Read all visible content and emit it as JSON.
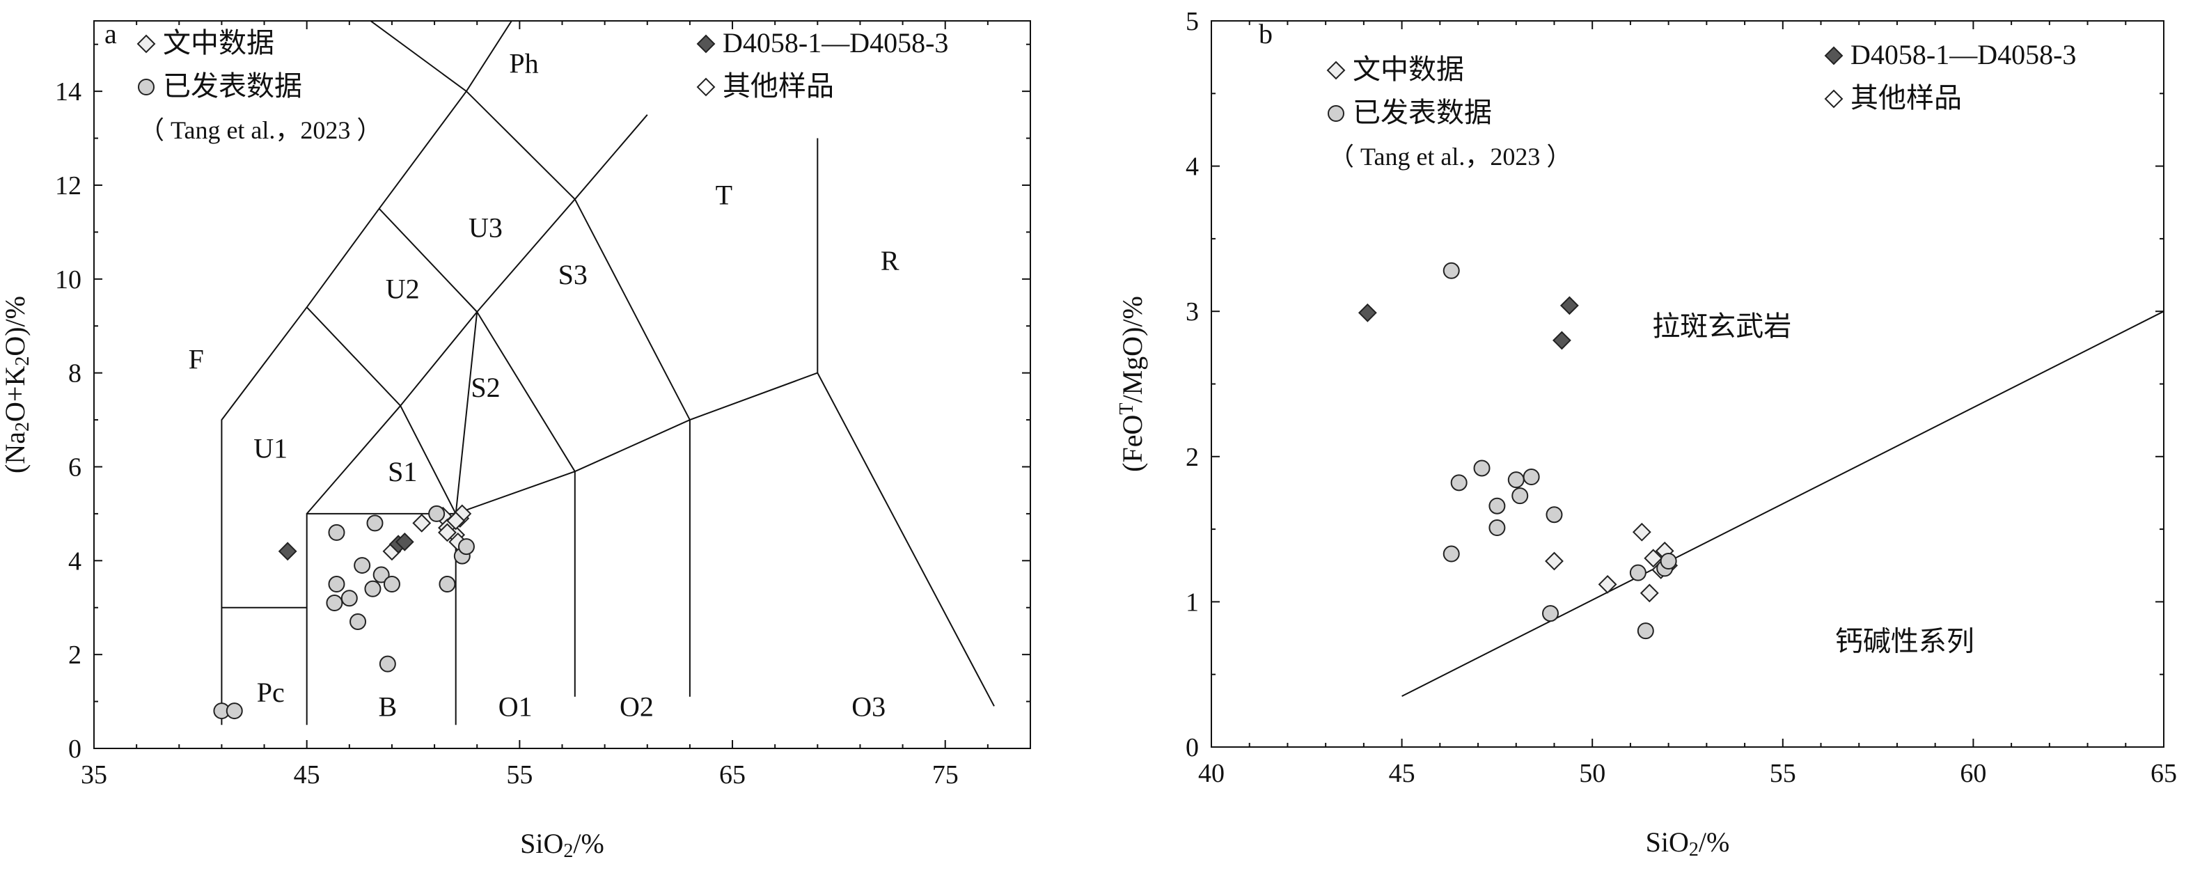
{
  "chart_data": [
    {
      "type": "scatter",
      "panel_label": "a",
      "xlabel": "SiO2/%",
      "ylabel": "(Na2O+K2O)/%",
      "xlim": [
        35,
        79
      ],
      "ylim": [
        0,
        15.5
      ],
      "x_ticks": [
        "35",
        "45",
        "55",
        "65",
        "75"
      ],
      "x_tick_values": [
        35,
        45,
        55,
        65,
        75
      ],
      "y_ticks": [
        "0",
        "2",
        "4",
        "6",
        "8",
        "10",
        "12",
        "14"
      ],
      "y_tick_values": [
        0,
        2,
        4,
        6,
        8,
        10,
        12,
        14
      ],
      "legend": [
        {
          "marker": "diamond-light",
          "label": "文中数据"
        },
        {
          "marker": "circle",
          "label": "已发表数据"
        },
        {
          "marker": "none",
          "label": "（ Tang et al.，2023 ）"
        },
        {
          "marker": "diamond-dark",
          "label": "D4058-1—D4058-3"
        },
        {
          "marker": "diamond-open",
          "label": "其他样品"
        }
      ],
      "field_labels": [
        {
          "text": "Ph",
          "x": 55.2,
          "y": 14.6
        },
        {
          "text": "T",
          "x": 64.6,
          "y": 11.8
        },
        {
          "text": "R",
          "x": 72.4,
          "y": 10.4
        },
        {
          "text": "U3",
          "x": 53.4,
          "y": 11.1
        },
        {
          "text": "U2",
          "x": 49.5,
          "y": 9.8
        },
        {
          "text": "S3",
          "x": 57.5,
          "y": 10.1
        },
        {
          "text": "F",
          "x": 39.8,
          "y": 8.3
        },
        {
          "text": "S2",
          "x": 53.4,
          "y": 7.7
        },
        {
          "text": "U1",
          "x": 43.3,
          "y": 6.4
        },
        {
          "text": "S1",
          "x": 49.5,
          "y": 5.9
        },
        {
          "text": "Pc",
          "x": 43.3,
          "y": 1.2
        },
        {
          "text": "B",
          "x": 48.8,
          "y": 0.9
        },
        {
          "text": "O1",
          "x": 54.8,
          "y": 0.9
        },
        {
          "text": "O2",
          "x": 60.5,
          "y": 0.9
        },
        {
          "text": "O3",
          "x": 71.4,
          "y": 0.9
        }
      ],
      "boundary_lines": [
        [
          [
            41,
            0.5
          ],
          [
            41,
            7
          ],
          [
            45,
            9.4
          ],
          [
            48.4,
            11.5
          ],
          [
            52.5,
            14
          ],
          [
            61,
            20
          ]
        ],
        [
          [
            41,
            3
          ],
          [
            45,
            3
          ]
        ],
        [
          [
            45,
            0.5
          ],
          [
            45,
            5
          ],
          [
            52,
            5
          ],
          [
            57.6,
            5.9
          ],
          [
            63,
            7
          ],
          [
            69,
            8
          ],
          [
            69,
            13
          ]
        ],
        [
          [
            52,
            0.5
          ],
          [
            52,
            5
          ],
          [
            49.4,
            7.3
          ],
          [
            45,
            9.4
          ]
        ],
        [
          [
            49.4,
            7.3
          ],
          [
            53,
            9.3
          ],
          [
            57.6,
            11.7
          ],
          [
            61,
            13.5
          ]
        ],
        [
          [
            53,
            9.3
          ],
          [
            48.4,
            11.5
          ]
        ],
        [
          [
            57.6,
            11.7
          ],
          [
            52.5,
            14
          ],
          [
            46.5,
            16
          ]
        ],
        [
          [
            45,
            5
          ],
          [
            49.4,
            7.3
          ]
        ],
        [
          [
            52,
            5
          ],
          [
            53,
            9.3
          ]
        ],
        [
          [
            57.6,
            5.9
          ],
          [
            57.6,
            1.1
          ]
        ],
        [
          [
            53,
            9.3
          ],
          [
            57.6,
            5.9
          ]
        ],
        [
          [
            57.6,
            11.7
          ],
          [
            63,
            7
          ],
          [
            63,
            1.1
          ]
        ],
        [
          [
            69,
            8
          ],
          [
            77.3,
            0.9
          ]
        ]
      ],
      "series": [
        {
          "name": "文中数据",
          "marker": "diamond-light",
          "points": [
            [
              50.4,
              4.8
            ],
            [
              51.4,
              4.95
            ],
            [
              51.6,
              4.7
            ],
            [
              52.0,
              4.55
            ],
            [
              52.2,
              4.9
            ],
            [
              52.3,
              5.0
            ],
            [
              51.6,
              4.6
            ],
            [
              52.1,
              4.4
            ],
            [
              49.0,
              4.2
            ],
            [
              52.0,
              4.85
            ]
          ]
        },
        {
          "name": "已发表数据",
          "marker": "circle",
          "points": [
            [
              41.0,
              0.8
            ],
            [
              41.6,
              0.8
            ],
            [
              46.3,
              3.1
            ],
            [
              46.4,
              3.5
            ],
            [
              46.4,
              4.6
            ],
            [
              47.0,
              3.2
            ],
            [
              47.4,
              2.7
            ],
            [
              47.6,
              3.9
            ],
            [
              48.1,
              3.4
            ],
            [
              48.2,
              4.8
            ],
            [
              48.5,
              3.7
            ],
            [
              48.8,
              1.8
            ],
            [
              49.0,
              3.5
            ],
            [
              51.1,
              5.0
            ],
            [
              51.6,
              3.5
            ],
            [
              52.3,
              4.1
            ],
            [
              52.5,
              4.3
            ]
          ]
        },
        {
          "name": "D4058-1—D4058-3",
          "marker": "diamond-dark",
          "points": [
            [
              44.1,
              4.2
            ],
            [
              49.3,
              4.35
            ],
            [
              49.6,
              4.4
            ]
          ]
        }
      ]
    },
    {
      "type": "scatter",
      "panel_label": "b",
      "xlabel": "SiO2/%",
      "ylabel": "(FeOT/MgO)/%",
      "xlim": [
        40,
        65
      ],
      "ylim": [
        0,
        5
      ],
      "x_ticks": [
        "40",
        "45",
        "50",
        "55",
        "60",
        "65"
      ],
      "x_tick_values": [
        40,
        45,
        50,
        55,
        60,
        65
      ],
      "y_ticks": [
        "0",
        "1",
        "2",
        "3",
        "4",
        "5"
      ],
      "y_tick_values": [
        0,
        1,
        2,
        3,
        4,
        5
      ],
      "legend": [
        {
          "marker": "diamond-light",
          "label": "文中数据"
        },
        {
          "marker": "circle",
          "label": "已发表数据"
        },
        {
          "marker": "none",
          "label": "（ Tang et al.，2023 ）"
        },
        {
          "marker": "diamond-dark",
          "label": "D4058-1—D4058-3"
        },
        {
          "marker": "diamond-open",
          "label": "其他样品"
        }
      ],
      "field_labels": [
        {
          "text": "拉斑玄武岩",
          "x": 53.4,
          "y": 2.9
        },
        {
          "text": "钙碱性系列",
          "x": 58.2,
          "y": 0.73
        }
      ],
      "boundary_lines": [
        [
          [
            45,
            0.35
          ],
          [
            65,
            3.0
          ]
        ]
      ],
      "series": [
        {
          "name": "文中数据",
          "marker": "diamond-light",
          "points": [
            [
              49.0,
              1.28
            ],
            [
              50.4,
              1.12
            ],
            [
              51.3,
              1.48
            ],
            [
              51.5,
              1.06
            ],
            [
              51.6,
              1.3
            ],
            [
              51.9,
              1.35
            ],
            [
              52.0,
              1.25
            ],
            [
              51.8,
              1.22
            ]
          ]
        },
        {
          "name": "已发表数据",
          "marker": "circle",
          "points": [
            [
              46.3,
              3.28
            ],
            [
              46.3,
              1.33
            ],
            [
              46.5,
              1.82
            ],
            [
              47.1,
              1.92
            ],
            [
              47.5,
              1.66
            ],
            [
              47.5,
              1.51
            ],
            [
              48.0,
              1.84
            ],
            [
              48.1,
              1.73
            ],
            [
              48.4,
              1.86
            ],
            [
              48.9,
              0.92
            ],
            [
              49.0,
              1.6
            ],
            [
              51.2,
              1.2
            ],
            [
              51.4,
              0.8
            ],
            [
              51.9,
              1.23
            ],
            [
              52.0,
              1.28
            ]
          ]
        },
        {
          "name": "D4058-1—D4058-3",
          "marker": "diamond-dark",
          "points": [
            [
              44.1,
              2.99
            ],
            [
              49.2,
              2.8
            ],
            [
              49.4,
              3.04
            ]
          ]
        }
      ]
    }
  ]
}
